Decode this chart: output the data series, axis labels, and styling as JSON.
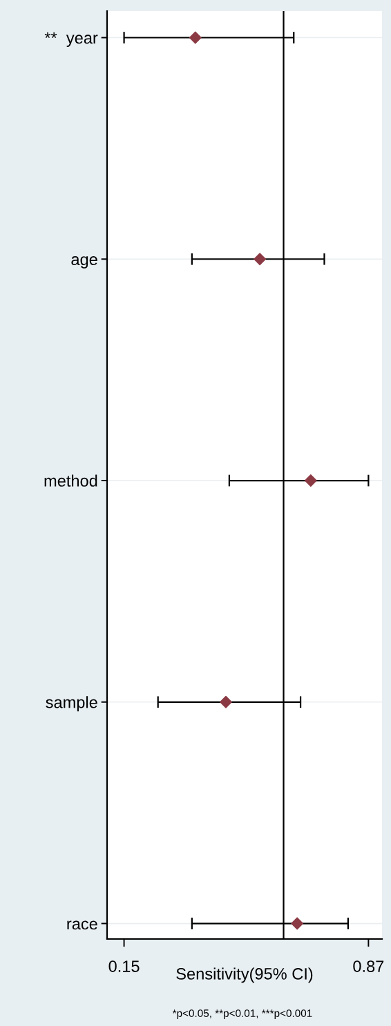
{
  "chart_data": {
    "type": "scatter",
    "categories": [
      "**  year",
      "age",
      "method",
      "sample",
      "race"
    ],
    "orientation": "horizontal",
    "series": [
      {
        "color": "#8b3a44",
        "values": [
          0.36,
          0.55,
          0.7,
          0.45,
          0.66
        ],
        "errors": [
          [
            0.15,
            0.65
          ],
          [
            0.35,
            0.74
          ],
          [
            0.46,
            0.87
          ],
          [
            0.25,
            0.67
          ],
          [
            0.35,
            0.81
          ]
        ]
      }
    ],
    "marker": "diamond",
    "xlim": [
      0.1,
      0.91
    ],
    "xticks": [
      0.15,
      0.87
    ],
    "xlabel": "Sensitivity(95% CI)",
    "ref_lines": [
      {
        "axis": "x",
        "value": 0.62,
        "color": "#000000"
      }
    ],
    "grid": "y",
    "annotations": [
      "*p<0.05, **p<0.01, ***p<0.001"
    ]
  }
}
